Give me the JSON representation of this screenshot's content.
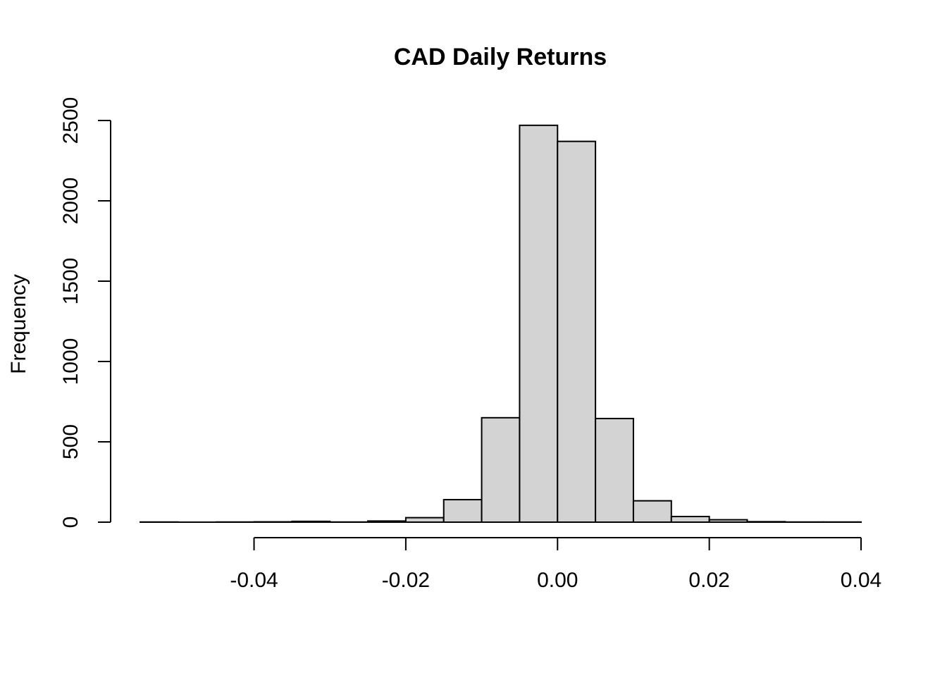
{
  "chart_data": {
    "type": "bar",
    "subtype": "histogram",
    "title": "CAD Daily Returns",
    "xlabel": "",
    "ylabel": "Frequency",
    "bin_width": 0.005,
    "bin_edges": [
      -0.055,
      -0.05,
      -0.045,
      -0.04,
      -0.035,
      -0.03,
      -0.025,
      -0.02,
      -0.015,
      -0.01,
      -0.005,
      0.0,
      0.005,
      0.01,
      0.015,
      0.02,
      0.025,
      0.03,
      0.035,
      0.04
    ],
    "values": [
      1,
      0,
      1,
      2,
      5,
      1,
      7,
      28,
      140,
      650,
      2470,
      2370,
      645,
      133,
      35,
      15,
      3,
      1,
      1
    ],
    "xlim": [
      -0.055,
      0.04
    ],
    "ylim": [
      0,
      2500
    ],
    "x_ticks": [
      -0.04,
      -0.02,
      0.0,
      0.02,
      0.04
    ],
    "x_tick_labels": [
      "-0.04",
      "-0.02",
      "0.00",
      "0.02",
      "0.04"
    ],
    "y_ticks": [
      0,
      500,
      1000,
      1500,
      2000,
      2500
    ],
    "y_tick_labels": [
      "0",
      "500",
      "1000",
      "1500",
      "2000",
      "2500"
    ],
    "grid": false,
    "bar_fill": "#d3d3d3",
    "bar_stroke": "#000000"
  }
}
